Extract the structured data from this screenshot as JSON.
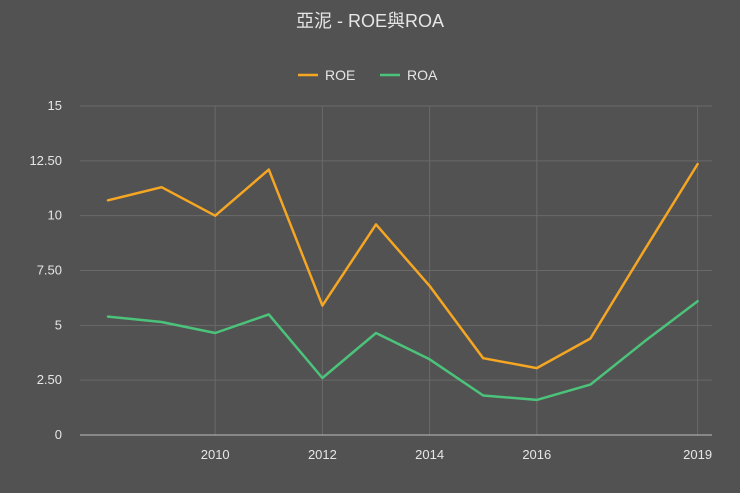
{
  "chart_data": {
    "type": "line",
    "title": "亞泥 - ROE與ROA",
    "xlabel": "",
    "ylabel": "",
    "x": [
      2008,
      2009,
      2010,
      2011,
      2012,
      2013,
      2014,
      2015,
      2016,
      2017,
      2018,
      2019
    ],
    "x_ticks": [
      2010,
      2012,
      2014,
      2016,
      2019
    ],
    "ylim": [
      0,
      15
    ],
    "y_ticks": [
      "0",
      "2.50",
      "5",
      "7.50",
      "10",
      "12.50",
      "15"
    ],
    "y_tick_values": [
      0,
      2.5,
      5,
      7.5,
      10,
      12.5,
      15
    ],
    "grid": true,
    "legend_position": "top-center",
    "series": [
      {
        "name": "ROE",
        "color": "#f5a623",
        "values": [
          10.7,
          11.3,
          10.0,
          12.1,
          5.9,
          9.6,
          6.8,
          3.5,
          3.05,
          4.4,
          8.4,
          12.35
        ]
      },
      {
        "name": "ROA",
        "color": "#4cc37a",
        "values": [
          5.4,
          5.15,
          4.65,
          5.5,
          2.6,
          4.65,
          3.45,
          1.8,
          1.6,
          2.3,
          4.25,
          6.1
        ]
      }
    ]
  }
}
